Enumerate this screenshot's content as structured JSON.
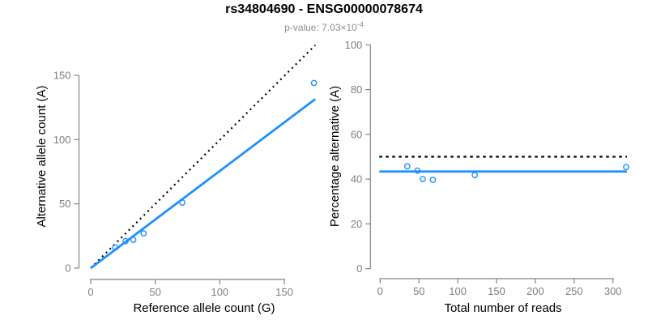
{
  "header": {
    "title": "rs34804690 - ENSG00000078674",
    "pvalue_prefix": "p-value: 7.03×10",
    "pvalue_exponent": "-4"
  },
  "colors": {
    "accent_blue": "#1E90FF",
    "axis_gray": "#848484",
    "tick_label_gray": "#7F7F7F",
    "subtitle_gray": "#8E8E8E",
    "identity_black": "#000000"
  },
  "chart_data": [
    {
      "type": "scatter",
      "panel": "left",
      "xlabel": "Reference allele count (G)",
      "ylabel": "Alternative allele count (A)",
      "xlim": [
        0,
        175
      ],
      "ylim": [
        0,
        175
      ],
      "xticks": [
        0,
        50,
        100,
        150
      ],
      "yticks": [
        0,
        50,
        100,
        150
      ],
      "grid": false,
      "points": [
        [
          19,
          16
        ],
        [
          27,
          21
        ],
        [
          33,
          22
        ],
        [
          41,
          27
        ],
        [
          71,
          51
        ],
        [
          173,
          144
        ]
      ],
      "identity_line": {
        "style": "dotted",
        "x1": 0,
        "y1": 0,
        "x2": 174,
        "y2": 173.5
      },
      "fit_line": {
        "style": "solid",
        "x1": 0,
        "y1": 0,
        "x2": 174,
        "y2": 131.5
      }
    },
    {
      "type": "scatter",
      "panel": "right",
      "xlabel": "Total number of reads",
      "ylabel": "Percentage alternative (A)",
      "xlim": [
        0,
        318
      ],
      "ylim": [
        0,
        100
      ],
      "xticks": [
        0,
        50,
        100,
        150,
        200,
        250,
        300
      ],
      "yticks": [
        0,
        20,
        40,
        60,
        80,
        100
      ],
      "grid": false,
      "points": [
        [
          35,
          45.7
        ],
        [
          48,
          43.8
        ],
        [
          55,
          40.0
        ],
        [
          68,
          39.7
        ],
        [
          122,
          41.8
        ],
        [
          317,
          45.4
        ]
      ],
      "identity_line": {
        "style": "dotted",
        "y": 50
      },
      "fit_line": {
        "style": "solid",
        "y": 43.4
      }
    }
  ]
}
